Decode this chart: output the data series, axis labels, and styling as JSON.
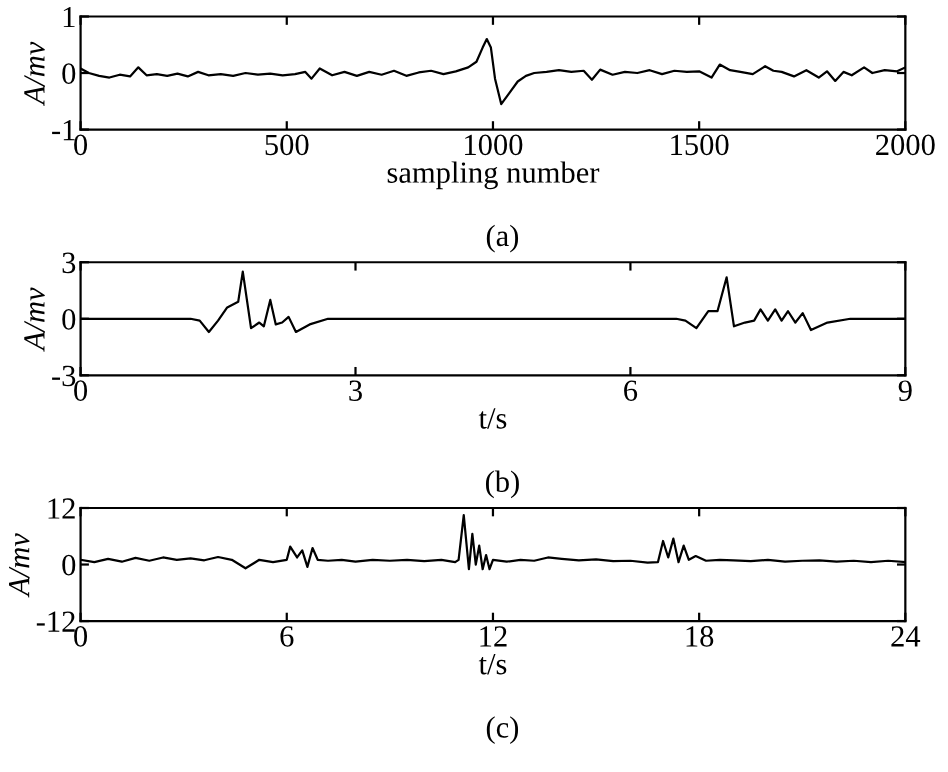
{
  "chart_data": [
    {
      "type": "line",
      "xlabel": "sampling number",
      "ylabel": "A/mv",
      "annotations": [
        "(a)"
      ],
      "xlim": [
        0,
        2000
      ],
      "ylim": [
        -1,
        1
      ],
      "xticks": [
        0,
        500,
        1000,
        1500,
        2000
      ],
      "yticks": [
        -1,
        0,
        1
      ],
      "grid": false,
      "marker": "none",
      "line_style": "solid",
      "series": [
        {
          "color": "#000000",
          "x": [
            0,
            20,
            45,
            70,
            95,
            120,
            140,
            160,
            185,
            210,
            235,
            260,
            285,
            310,
            340,
            370,
            400,
            430,
            460,
            490,
            520,
            545,
            560,
            580,
            610,
            640,
            670,
            700,
            730,
            760,
            790,
            820,
            850,
            880,
            910,
            940,
            960,
            975,
            985,
            995,
            1005,
            1020,
            1040,
            1060,
            1080,
            1100,
            1130,
            1160,
            1190,
            1220,
            1240,
            1260,
            1290,
            1320,
            1350,
            1380,
            1410,
            1440,
            1470,
            1500,
            1530,
            1550,
            1575,
            1600,
            1630,
            1660,
            1680,
            1700,
            1730,
            1760,
            1790,
            1810,
            1830,
            1850,
            1870,
            1900,
            1920,
            1950,
            1980,
            2000
          ],
          "values": [
            0.08,
            0.0,
            -0.05,
            -0.08,
            -0.03,
            -0.06,
            0.1,
            -0.04,
            -0.02,
            -0.05,
            -0.01,
            -0.06,
            0.02,
            -0.04,
            -0.02,
            -0.05,
            0.0,
            -0.03,
            -0.01,
            -0.04,
            -0.02,
            0.02,
            -0.1,
            0.08,
            -0.04,
            0.02,
            -0.05,
            0.02,
            -0.03,
            0.04,
            -0.05,
            0.01,
            0.04,
            -0.02,
            0.03,
            0.1,
            0.2,
            0.45,
            0.6,
            0.45,
            -0.1,
            -0.55,
            -0.35,
            -0.15,
            -0.05,
            0.0,
            0.02,
            0.05,
            0.02,
            0.04,
            -0.12,
            0.06,
            -0.03,
            0.02,
            0.0,
            0.05,
            -0.02,
            0.04,
            0.02,
            0.03,
            -0.08,
            0.15,
            0.05,
            0.02,
            -0.02,
            0.12,
            0.04,
            0.02,
            -0.06,
            0.05,
            -0.08,
            0.03,
            -0.14,
            0.02,
            -0.04,
            0.1,
            0.0,
            0.05,
            0.03,
            0.1
          ]
        }
      ]
    },
    {
      "type": "line",
      "xlabel": "t/s",
      "ylabel": "A/mv",
      "annotations": [
        "(b)"
      ],
      "xlim": [
        0,
        9
      ],
      "ylim": [
        -3,
        3
      ],
      "xticks": [
        0,
        3,
        6,
        9
      ],
      "yticks": [
        -3,
        0,
        3
      ],
      "grid": false,
      "marker": "none",
      "line_style": "solid",
      "series": [
        {
          "color": "#000000",
          "x": [
            0,
            1.2,
            1.3,
            1.4,
            1.5,
            1.6,
            1.72,
            1.77,
            1.86,
            1.95,
            2.0,
            2.07,
            2.13,
            2.2,
            2.27,
            2.35,
            2.5,
            2.7,
            3.5,
            6.5,
            6.6,
            6.72,
            6.85,
            6.95,
            7.05,
            7.13,
            7.25,
            7.35,
            7.42,
            7.5,
            7.58,
            7.65,
            7.72,
            7.8,
            7.88,
            7.97,
            8.15,
            8.4,
            9
          ],
          "values": [
            0,
            0,
            -0.1,
            -0.7,
            -0.1,
            0.6,
            0.9,
            2.5,
            -0.5,
            -0.2,
            -0.4,
            1.0,
            -0.3,
            -0.2,
            0.1,
            -0.7,
            -0.3,
            0,
            0,
            0,
            -0.1,
            -0.5,
            0.4,
            0.4,
            2.2,
            -0.4,
            -0.2,
            -0.1,
            0.5,
            -0.1,
            0.5,
            -0.1,
            0.4,
            -0.2,
            0.3,
            -0.6,
            -0.2,
            0,
            0
          ]
        }
      ]
    },
    {
      "type": "line",
      "xlabel": "t/s",
      "ylabel": "A/mv",
      "annotations": [
        "(c)"
      ],
      "xlim": [
        0,
        24
      ],
      "ylim": [
        -12,
        12
      ],
      "xticks": [
        0,
        6,
        12,
        18,
        24
      ],
      "yticks": [
        -12,
        0,
        12
      ],
      "grid": false,
      "marker": "none",
      "line_style": "solid",
      "series": [
        {
          "color": "#000000",
          "x": [
            0,
            0.4,
            0.8,
            1.2,
            1.6,
            2.0,
            2.4,
            2.8,
            3.2,
            3.6,
            4.0,
            4.4,
            4.8,
            5.2,
            5.6,
            6.0,
            6.1,
            6.3,
            6.45,
            6.6,
            6.75,
            6.9,
            7.2,
            7.6,
            8.0,
            8.5,
            9.0,
            9.5,
            10.0,
            10.5,
            10.9,
            11.0,
            11.15,
            11.3,
            11.4,
            11.5,
            11.6,
            11.7,
            11.8,
            11.9,
            12.0,
            12.4,
            12.8,
            13.2,
            13.6,
            14.0,
            14.5,
            15.0,
            15.5,
            16.0,
            16.5,
            16.8,
            16.95,
            17.1,
            17.25,
            17.4,
            17.55,
            17.7,
            17.9,
            18.2,
            18.6,
            19.0,
            19.5,
            20.0,
            20.5,
            21.0,
            21.5,
            22.0,
            22.5,
            23.0,
            23.5,
            24.0
          ],
          "values": [
            1,
            0.5,
            1.2,
            0.6,
            1.4,
            0.8,
            1.5,
            1.0,
            1.3,
            0.9,
            1.6,
            1.0,
            -0.8,
            1.0,
            0.5,
            1.0,
            3.8,
            1.5,
            3.0,
            -0.5,
            3.5,
            1.0,
            0.8,
            1.0,
            0.6,
            1.0,
            0.8,
            1.0,
            0.7,
            1.0,
            0.5,
            1.0,
            10.5,
            -1.0,
            6.5,
            0.0,
            4.0,
            -1.0,
            2.0,
            -1.0,
            1.0,
            0.6,
            1.0,
            0.8,
            1.5,
            1.2,
            0.9,
            1.1,
            0.7,
            0.8,
            0.4,
            0.5,
            5.0,
            1.5,
            5.5,
            0.5,
            4.0,
            1.0,
            1.8,
            0.8,
            1.0,
            0.9,
            0.7,
            1.0,
            0.6,
            0.8,
            0.9,
            0.6,
            0.8,
            0.5,
            0.8,
            0.5
          ]
        }
      ]
    }
  ]
}
